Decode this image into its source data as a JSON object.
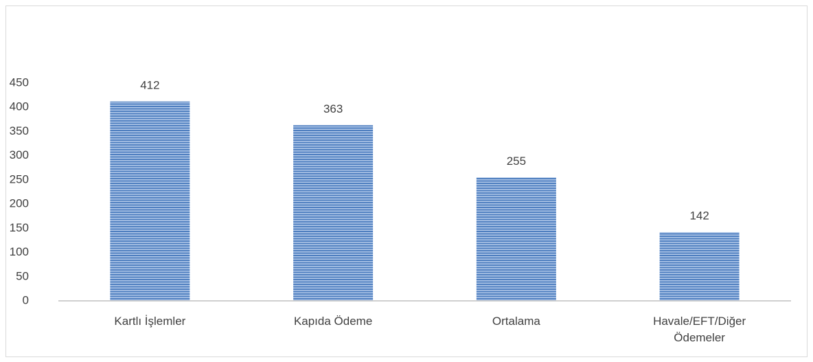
{
  "chart_data": {
    "type": "bar",
    "categories": [
      "Kartlı İşlemler",
      "Kapıda Ödeme",
      "Ortalama",
      "Havale/EFT/Diğer Ödemeler"
    ],
    "values": [
      412,
      363,
      255,
      142
    ],
    "color": "#4f7fc0",
    "ylim": [
      0,
      450
    ],
    "yticks": [
      0,
      50,
      100,
      150,
      200,
      250,
      300,
      350,
      400,
      450
    ],
    "grid": false
  }
}
